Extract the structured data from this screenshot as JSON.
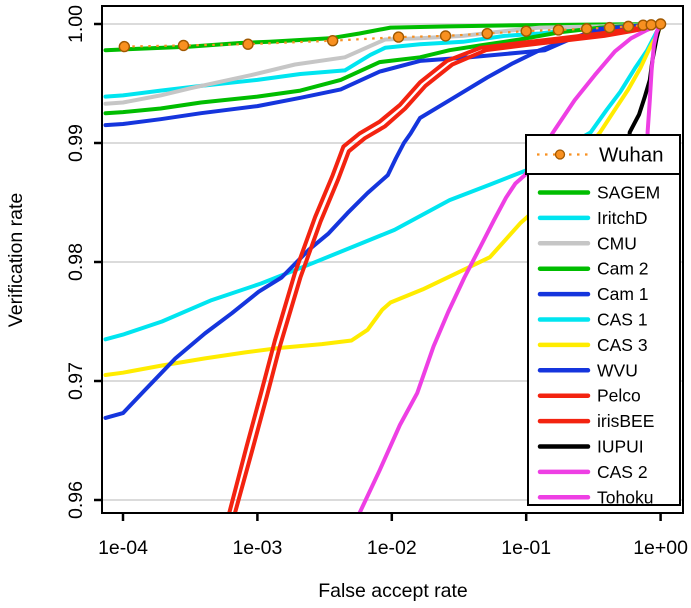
{
  "chart_data": {
    "type": "line",
    "title": "",
    "xlabel": "False accept rate",
    "ylabel": "Verification rate",
    "x_scale": "log10",
    "grid": "horizontal-only",
    "grid_color": "#cfcfcf",
    "axis_color": "#000000",
    "legend_position": "right-middle",
    "highlighted_series": "Wuhan",
    "x_ticks": [
      {
        "label": "1e-04",
        "log10": -4
      },
      {
        "label": "1e-03",
        "log10": -3
      },
      {
        "label": "1e-02",
        "log10": -2
      },
      {
        "label": "1e-01",
        "log10": -1
      },
      {
        "label": "1e+00",
        "log10": 0
      }
    ],
    "y_ticks": [
      {
        "label": "1.00",
        "value": 1.0
      },
      {
        "label": "0.99",
        "value": 0.99
      },
      {
        "label": "0.98",
        "value": 0.98
      },
      {
        "label": "0.97",
        "value": 0.97
      },
      {
        "label": "0.96",
        "value": 0.96
      }
    ],
    "x_range_log10": [
      -4.16,
      0.16
    ],
    "y_range": [
      0.9585,
      1.0016
    ],
    "series": [
      {
        "name": "Wuhan",
        "color": "#f89020",
        "marker_edge": "#a05800",
        "style": "dotted",
        "marker": true,
        "points": [
          [
            -3.99,
            0.9981
          ],
          [
            -3.55,
            0.9982
          ],
          [
            -3.07,
            0.9983
          ],
          [
            -2.44,
            0.9986
          ],
          [
            -1.95,
            0.9989
          ],
          [
            -1.6,
            0.999
          ],
          [
            -1.29,
            0.9992
          ],
          [
            -1.0,
            0.9994
          ],
          [
            -0.76,
            0.9995
          ],
          [
            -0.55,
            0.9996
          ],
          [
            -0.38,
            0.9997
          ],
          [
            -0.24,
            0.9998
          ],
          [
            -0.13,
            0.9999
          ],
          [
            -0.07,
            0.99993
          ],
          [
            0,
            1.0
          ]
        ]
      },
      {
        "name": "SAGEM",
        "color": "#00bd00",
        "style": "solid",
        "marker": false,
        "points": [
          [
            -4.13,
            0.9978
          ],
          [
            -3.5,
            0.9981
          ],
          [
            -3.13,
            0.9984
          ],
          [
            -2.91,
            0.9985
          ],
          [
            -2.46,
            0.9988
          ],
          [
            -2.24,
            0.9992
          ],
          [
            -2.01,
            0.9997
          ],
          [
            -1.57,
            0.9998
          ],
          [
            -1.05,
            0.9999
          ],
          [
            -0.45,
            0.99996
          ],
          [
            0,
            1.0
          ]
        ]
      },
      {
        "name": "IritchD",
        "color": "#00e5f0",
        "style": "solid",
        "marker": false,
        "points": [
          [
            -4.13,
            0.9939
          ],
          [
            -4.0,
            0.994
          ],
          [
            -3.72,
            0.9944
          ],
          [
            -3.42,
            0.9948
          ],
          [
            -3.0,
            0.9953
          ],
          [
            -2.68,
            0.9958
          ],
          [
            -2.35,
            0.9961
          ],
          [
            -2.16,
            0.9974
          ],
          [
            -2.05,
            0.998
          ],
          [
            -1.79,
            0.9983
          ],
          [
            -1.47,
            0.9985
          ],
          [
            -1.16,
            0.999
          ],
          [
            -0.9,
            0.9992
          ],
          [
            -0.6,
            0.9996
          ],
          [
            -0.31,
            0.9998
          ],
          [
            0,
            1.0
          ]
        ]
      },
      {
        "name": "CMU",
        "color": "#c6c6c6",
        "style": "solid",
        "marker": false,
        "points": [
          [
            -4.13,
            0.9933
          ],
          [
            -4.0,
            0.9934
          ],
          [
            -3.72,
            0.994
          ],
          [
            -3.5,
            0.9946
          ],
          [
            -3.05,
            0.9957
          ],
          [
            -2.72,
            0.9966
          ],
          [
            -2.35,
            0.9972
          ],
          [
            -2.05,
            0.9987
          ],
          [
            -1.79,
            0.9988
          ],
          [
            -1.47,
            0.999
          ],
          [
            -1.16,
            0.9994
          ],
          [
            -0.9,
            0.9997
          ],
          [
            -0.45,
            0.9998
          ],
          [
            0,
            1.0
          ]
        ]
      },
      {
        "name": "Cam 2",
        "color": "#00bd00",
        "style": "solid",
        "marker": false,
        "points": [
          [
            -4.13,
            0.9925
          ],
          [
            -4.0,
            0.9926
          ],
          [
            -3.72,
            0.9929
          ],
          [
            -3.42,
            0.9934
          ],
          [
            -3.0,
            0.9939
          ],
          [
            -2.68,
            0.9944
          ],
          [
            -2.38,
            0.9953
          ],
          [
            -2.09,
            0.9968
          ],
          [
            -1.79,
            0.9972
          ],
          [
            -1.57,
            0.9978
          ],
          [
            -1.34,
            0.9982
          ],
          [
            -1.05,
            0.9987
          ],
          [
            -0.75,
            0.9993
          ],
          [
            -0.45,
            0.9997
          ],
          [
            0,
            1.0
          ]
        ]
      },
      {
        "name": "Cam 1",
        "color": "#1535dd",
        "style": "solid",
        "marker": false,
        "points": [
          [
            -4.13,
            0.9915
          ],
          [
            -4.0,
            0.9916
          ],
          [
            -3.72,
            0.992
          ],
          [
            -3.42,
            0.9925
          ],
          [
            -3.0,
            0.9931
          ],
          [
            -2.68,
            0.9938
          ],
          [
            -2.38,
            0.9945
          ],
          [
            -2.09,
            0.996
          ],
          [
            -1.79,
            0.9969
          ],
          [
            -1.42,
            0.9972
          ],
          [
            -1.05,
            0.9976
          ],
          [
            -0.86,
            0.9978
          ],
          [
            -0.68,
            0.9987
          ],
          [
            -0.45,
            0.9996
          ],
          [
            0,
            1.0
          ]
        ]
      },
      {
        "name": "CAS 1",
        "color": "#00e5f0",
        "style": "solid",
        "marker": false,
        "points": [
          [
            -4.13,
            0.9735
          ],
          [
            -4.0,
            0.9739
          ],
          [
            -3.71,
            0.975
          ],
          [
            -3.34,
            0.9768
          ],
          [
            -2.97,
            0.9782
          ],
          [
            -2.59,
            0.9799
          ],
          [
            -2.22,
            0.9816
          ],
          [
            -1.98,
            0.9827
          ],
          [
            -1.57,
            0.9852
          ],
          [
            -1.27,
            0.9865
          ],
          [
            -1.0,
            0.9877
          ],
          [
            -0.75,
            0.9894
          ],
          [
            -0.52,
            0.9909
          ],
          [
            -0.4,
            0.9928
          ],
          [
            -0.3,
            0.9943
          ],
          [
            -0.19,
            0.9963
          ],
          [
            -0.1,
            0.9978
          ],
          [
            -0.04,
            0.9991
          ],
          [
            0,
            1.0
          ]
        ]
      },
      {
        "name": "CAS 3",
        "color": "#ffec00",
        "style": "solid",
        "marker": false,
        "points": [
          [
            -4.13,
            0.9705
          ],
          [
            -4.0,
            0.9707
          ],
          [
            -3.71,
            0.9713
          ],
          [
            -3.39,
            0.9719
          ],
          [
            -3.09,
            0.9724
          ],
          [
            -2.82,
            0.9728
          ],
          [
            -2.52,
            0.9731
          ],
          [
            -2.3,
            0.9734
          ],
          [
            -2.18,
            0.9743
          ],
          [
            -2.07,
            0.976
          ],
          [
            -2.01,
            0.9766
          ],
          [
            -1.77,
            0.9777
          ],
          [
            -1.51,
            0.9791
          ],
          [
            -1.27,
            0.9804
          ],
          [
            -1.04,
            0.9833
          ],
          [
            -0.97,
            0.984
          ],
          [
            -0.71,
            0.9873
          ],
          [
            -0.45,
            0.9909
          ],
          [
            -0.34,
            0.9928
          ],
          [
            -0.24,
            0.9945
          ],
          [
            -0.15,
            0.9963
          ],
          [
            -0.08,
            0.998
          ],
          [
            -0.02,
            0.9992
          ],
          [
            0,
            1.0
          ]
        ]
      },
      {
        "name": "WVU",
        "color": "#1535dd",
        "style": "solid",
        "marker": false,
        "points": [
          [
            -4.13,
            0.9669
          ],
          [
            -4.0,
            0.9673
          ],
          [
            -3.84,
            0.9692
          ],
          [
            -3.61,
            0.9719
          ],
          [
            -3.39,
            0.974
          ],
          [
            -3.19,
            0.9757
          ],
          [
            -2.99,
            0.9775
          ],
          [
            -2.82,
            0.9787
          ],
          [
            -2.62,
            0.981
          ],
          [
            -2.47,
            0.9824
          ],
          [
            -2.33,
            0.9841
          ],
          [
            -2.18,
            0.9858
          ],
          [
            -2.03,
            0.9873
          ],
          [
            -1.97,
            0.9887
          ],
          [
            -1.91,
            0.99
          ],
          [
            -1.86,
            0.9908
          ],
          [
            -1.79,
            0.9921
          ],
          [
            -1.54,
            0.9938
          ],
          [
            -1.29,
            0.9955
          ],
          [
            -1.1,
            0.9967
          ],
          [
            -0.9,
            0.9978
          ],
          [
            -0.68,
            0.9987
          ],
          [
            -0.45,
            0.9995
          ],
          [
            0,
            1.0
          ]
        ]
      },
      {
        "name": "Pelco",
        "color": "#f32310",
        "style": "solid",
        "marker": false,
        "points": [
          [
            -3.21,
            0.9589
          ],
          [
            -3.08,
            0.9645
          ],
          [
            -2.97,
            0.9691
          ],
          [
            -2.87,
            0.9734
          ],
          [
            -2.72,
            0.9791
          ],
          [
            -2.57,
            0.9838
          ],
          [
            -2.44,
            0.9873
          ],
          [
            -2.36,
            0.9897
          ],
          [
            -2.24,
            0.9908
          ],
          [
            -2.09,
            0.9918
          ],
          [
            -1.94,
            0.9932
          ],
          [
            -1.79,
            0.9951
          ],
          [
            -1.59,
            0.9969
          ],
          [
            -1.34,
            0.998
          ],
          [
            -1.05,
            0.9984
          ],
          [
            -0.75,
            0.9988
          ],
          [
            -0.45,
            0.9992
          ],
          [
            -0.15,
            0.9997
          ],
          [
            0,
            1.0
          ]
        ]
      },
      {
        "name": "irisBEE",
        "color": "#f32310",
        "style": "solid",
        "marker": false,
        "points": [
          [
            -3.17,
            0.9588
          ],
          [
            -3.04,
            0.9641
          ],
          [
            -2.93,
            0.9687
          ],
          [
            -2.83,
            0.973
          ],
          [
            -2.68,
            0.9787
          ],
          [
            -2.53,
            0.9834
          ],
          [
            -2.4,
            0.9869
          ],
          [
            -2.32,
            0.9893
          ],
          [
            -2.2,
            0.9904
          ],
          [
            -2.05,
            0.9914
          ],
          [
            -1.9,
            0.9929
          ],
          [
            -1.75,
            0.9948
          ],
          [
            -1.55,
            0.9966
          ],
          [
            -1.3,
            0.9978
          ],
          [
            -1.02,
            0.9982
          ],
          [
            -0.72,
            0.9986
          ],
          [
            -0.42,
            0.999
          ],
          [
            -0.12,
            0.9996
          ],
          [
            0,
            1.0
          ]
        ]
      },
      {
        "name": "IUPUI",
        "color": "#000000",
        "style": "solid",
        "marker": false,
        "points": [
          [
            -0.33,
            0.965
          ],
          [
            -0.3,
            0.975
          ],
          [
            -0.26,
            0.985
          ],
          [
            -0.23,
            0.9909
          ],
          [
            -0.16,
            0.9924
          ],
          [
            -0.12,
            0.9938
          ],
          [
            -0.08,
            0.9953
          ],
          [
            -0.06,
            0.997
          ],
          [
            -0.03,
            0.9988
          ],
          [
            -0.01,
            0.9997
          ],
          [
            0,
            1.0
          ]
        ]
      },
      {
        "name": "CAS 2",
        "color": "#ee3fe4",
        "style": "solid",
        "marker": false,
        "points": [
          [
            -2.24,
            0.9589
          ],
          [
            -2.09,
            0.9625
          ],
          [
            -1.94,
            0.9663
          ],
          [
            -1.81,
            0.969
          ],
          [
            -1.69,
            0.9729
          ],
          [
            -1.58,
            0.9758
          ],
          [
            -1.46,
            0.9787
          ],
          [
            -1.34,
            0.9813
          ],
          [
            -1.24,
            0.9835
          ],
          [
            -1.15,
            0.9854
          ],
          [
            -1.08,
            0.9866
          ],
          [
            -1.01,
            0.9873
          ],
          [
            -0.8,
            0.9909
          ],
          [
            -0.64,
            0.9936
          ],
          [
            -0.49,
            0.9957
          ],
          [
            -0.34,
            0.9977
          ],
          [
            -0.22,
            0.9988
          ],
          [
            -0.1,
            0.9995
          ],
          [
            0,
            1.0
          ]
        ]
      },
      {
        "name": "Tohoku",
        "color": "#ee3fe4",
        "style": "solid",
        "marker": false,
        "points": [
          [
            -0.16,
            0.965
          ],
          [
            -0.13,
            0.9726
          ],
          [
            -0.1,
            0.9852
          ],
          [
            -0.097,
            0.9909
          ],
          [
            -0.08,
            0.9936
          ],
          [
            -0.067,
            0.9961
          ],
          [
            -0.05,
            0.9982
          ],
          [
            -0.03,
            0.9993
          ],
          [
            0,
            1.0
          ]
        ]
      }
    ]
  }
}
